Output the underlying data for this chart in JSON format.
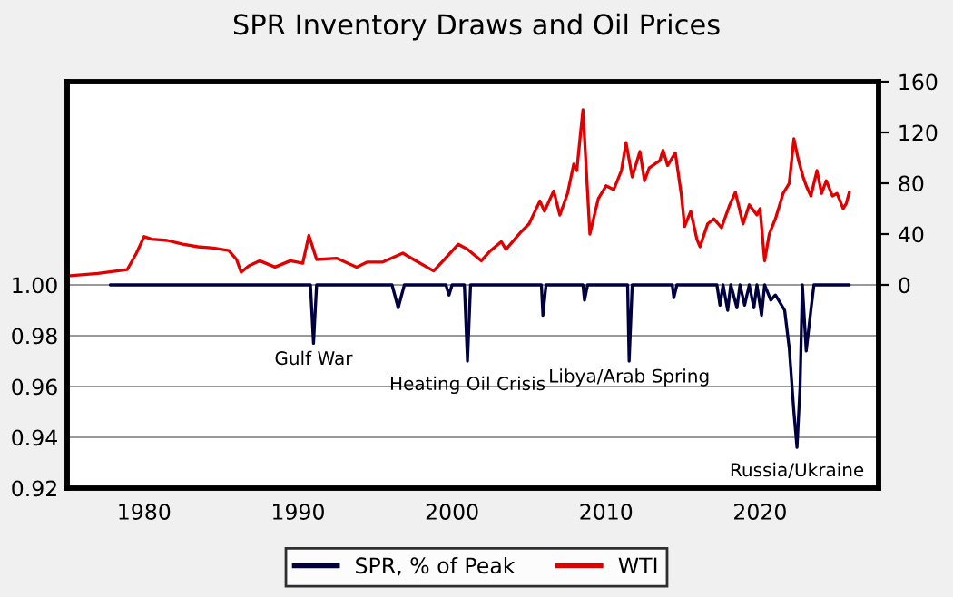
{
  "chart_data": {
    "type": "line",
    "title": "SPR Inventory Draws and Oil Prices",
    "xlim": [
      1975,
      2027.7
    ],
    "xticks": [
      1980,
      1990,
      2000,
      2010,
      2020
    ],
    "ylim": [
      0.92,
      1.08
    ],
    "yticks": [
      {
        "value": 0.92,
        "label": "0.92"
      },
      {
        "value": 0.94,
        "label": "0.94"
      },
      {
        "value": 0.96,
        "label": "0.96"
      },
      {
        "value": 0.98,
        "label": "0.98"
      },
      {
        "value": 1.0,
        "label": "1.00"
      }
    ],
    "y2lim": [
      -160,
      160
    ],
    "y2ticks": [
      0,
      40,
      80,
      120,
      160
    ],
    "grid": "y",
    "legend": "bottom",
    "series": [
      {
        "name": "SPR, % of Peak",
        "color": "#000040",
        "axis": "y",
        "x": [
          1977.8,
          1990.8,
          1991.0,
          1991.2,
          1996.1,
          1996.5,
          1996.9,
          1999.6,
          1999.8,
          2000.0,
          2000.8,
          2001.0,
          2001.2,
          2005.8,
          2005.9,
          2006.1,
          2008.5,
          2008.6,
          2008.8,
          2011.4,
          2011.5,
          2011.7,
          2014.3,
          2014.4,
          2014.6,
          2017.2,
          2017.4,
          2017.6,
          2017.9,
          2018.1,
          2018.5,
          2018.7,
          2019.0,
          2019.3,
          2019.6,
          2019.8,
          2020.1,
          2020.3,
          2020.7,
          2021.0,
          2021.6,
          2021.9,
          2022.2,
          2022.4,
          2022.6,
          2022.75,
          2023.0,
          2023.3,
          2023.5,
          2025.8
        ],
        "values": [
          1.0,
          1.0,
          0.977,
          1.0,
          1.0,
          0.991,
          1.0,
          1.0,
          0.996,
          1.0,
          1.0,
          0.97,
          1.0,
          1.0,
          0.988,
          1.0,
          1.0,
          0.994,
          1.0,
          1.0,
          0.97,
          1.0,
          1.0,
          0.995,
          1.0,
          1.0,
          0.992,
          1.0,
          0.99,
          1.0,
          0.991,
          1.0,
          0.992,
          1.0,
          0.991,
          1.0,
          0.988,
          1.0,
          0.994,
          0.996,
          0.99,
          0.975,
          0.95,
          0.936,
          0.96,
          1.0,
          0.974,
          0.99,
          1.0,
          1.0
        ]
      },
      {
        "name": "WTI",
        "color": "#e00000",
        "axis": "y2",
        "x": [
          1975.0,
          1977.0,
          1978.9,
          1979.5,
          1980.0,
          1980.5,
          1981.5,
          1982.5,
          1983.5,
          1984.5,
          1985.5,
          1986.0,
          1986.3,
          1986.8,
          1987.5,
          1988.5,
          1989.5,
          1990.3,
          1990.7,
          1991.2,
          1992.5,
          1993.8,
          1994.5,
          1995.5,
          1996.8,
          1997.5,
          1998.8,
          1999.5,
          2000.4,
          2001.0,
          2001.9,
          2002.5,
          2003.2,
          2003.5,
          2004.5,
          2005.0,
          2005.7,
          2006.0,
          2006.6,
          2007.0,
          2007.5,
          2007.9,
          2008.1,
          2008.5,
          2008.95,
          2009.5,
          2010.0,
          2010.5,
          2011.0,
          2011.3,
          2011.7,
          2012.2,
          2012.5,
          2012.8,
          2013.5,
          2013.7,
          2014.0,
          2014.5,
          2014.9,
          2015.1,
          2015.5,
          2015.9,
          2016.1,
          2016.6,
          2017.0,
          2017.5,
          2018.0,
          2018.4,
          2018.9,
          2019.3,
          2019.8,
          2020.0,
          2020.3,
          2020.6,
          2021.0,
          2021.5,
          2021.9,
          2022.2,
          2022.5,
          2022.8,
          2023.0,
          2023.3,
          2023.7,
          2024.0,
          2024.3,
          2024.7,
          2025.0,
          2025.4,
          2025.6,
          2025.8
        ],
        "values": [
          7,
          9,
          12,
          25,
          38,
          36,
          35,
          32,
          30,
          29,
          27,
          20,
          10,
          15,
          19,
          14,
          19,
          17,
          39,
          20,
          21,
          14,
          18,
          18,
          25,
          20,
          11,
          20,
          32,
          28,
          19,
          27,
          34,
          28,
          42,
          48,
          66,
          58,
          74,
          55,
          72,
          95,
          90,
          138,
          40,
          68,
          78,
          75,
          90,
          112,
          85,
          105,
          82,
          92,
          98,
          106,
          94,
          104,
          70,
          46,
          58,
          36,
          30,
          48,
          52,
          45,
          62,
          73,
          48,
          63,
          55,
          60,
          19,
          40,
          52,
          72,
          80,
          115,
          98,
          85,
          78,
          70,
          90,
          72,
          82,
          70,
          72,
          60,
          64,
          73
        ]
      }
    ],
    "annotations": [
      {
        "text": "Gulf War",
        "x": 1991.0,
        "y": 0.977
      },
      {
        "text": "Heating Oil Crisis",
        "x": 2001.0,
        "y": 0.97
      },
      {
        "text": "Libya/Arab Spring",
        "x": 2011.5,
        "y": 0.97
      },
      {
        "text": "Russia/Ukraine",
        "x": 2022.4,
        "y": 0.936
      }
    ]
  }
}
